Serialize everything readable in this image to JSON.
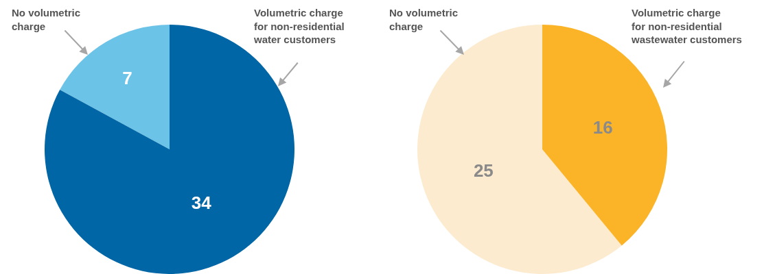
{
  "chart_data": [
    {
      "type": "pie",
      "categories": [
        "No volumetric charge",
        "Volumetric charge for non-residential water customers"
      ],
      "values": [
        7,
        34
      ],
      "colors": [
        "#6cc3e8",
        "#0066a6"
      ],
      "data_labels": true
    },
    {
      "type": "pie",
      "categories": [
        "No volumetric charge",
        "Volumetric charge for non-residential wastewater customers"
      ],
      "values": [
        25,
        16
      ],
      "colors": [
        "#fdebd0",
        "#fbb427"
      ],
      "data_labels": true
    }
  ]
}
